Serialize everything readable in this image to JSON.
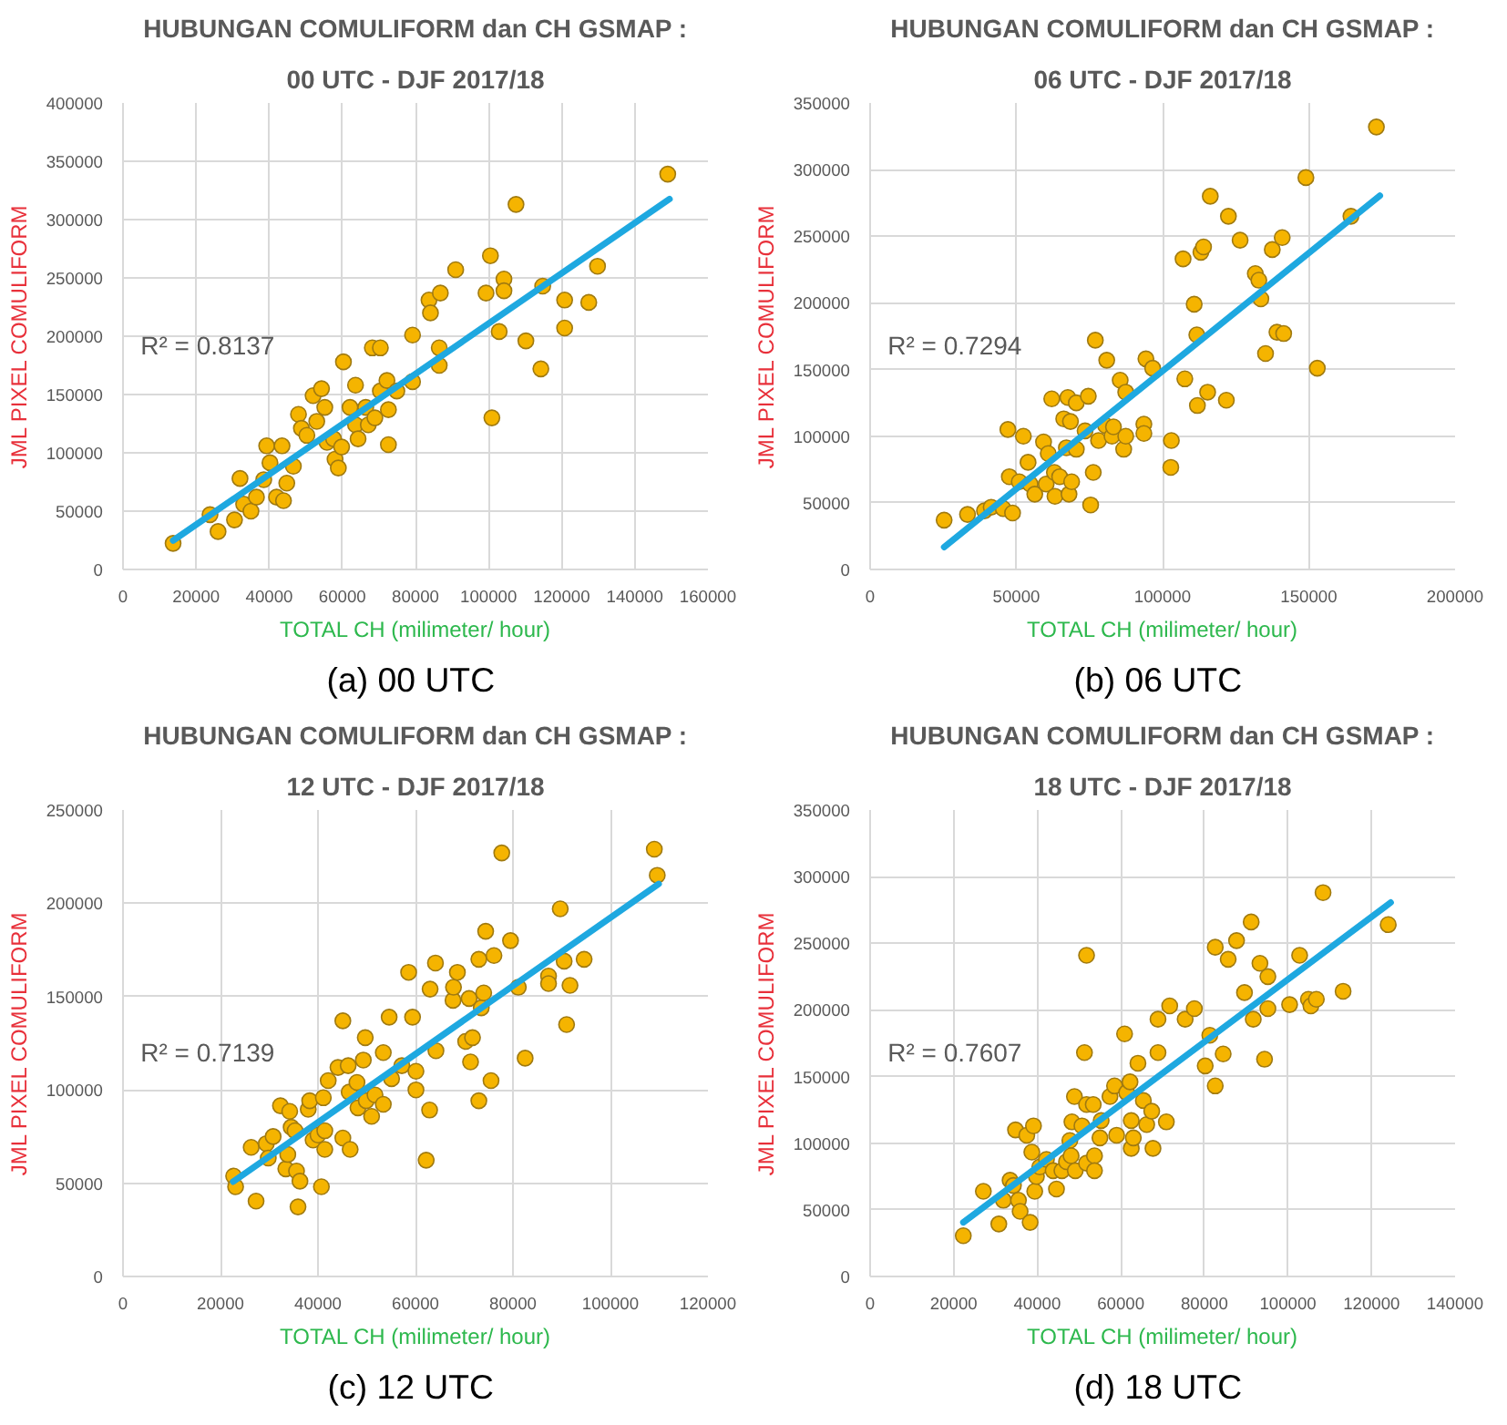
{
  "chart_data": [
    {
      "type": "scatter",
      "title": "HUBUNGAN COMULIFORM dan CH GSMAP :",
      "subtitle": "00 UTC - DJF 2017/18",
      "xlabel": "TOTAL CH (milimeter/ hour)",
      "ylabel": "JML PIXEL COMULIFORM",
      "annotations": [
        "R² = 0.8137",
        "(a)  00 UTC"
      ],
      "xlim": [
        0,
        160000
      ],
      "xticks": [
        0,
        20000,
        40000,
        60000,
        80000,
        100000,
        120000,
        140000,
        160000
      ],
      "ylim": [
        0,
        400000
      ],
      "yticks": [
        0,
        50000,
        100000,
        150000,
        200000,
        250000,
        300000,
        350000,
        400000
      ],
      "grid": true,
      "series": [
        {
          "type": "scatter",
          "marker": "circle",
          "color": "#f5b400",
          "x": [
            13700,
            23800,
            26000,
            30500,
            32000,
            33000,
            35000,
            36500,
            38500,
            39300,
            40200,
            42000,
            43500,
            43900,
            44800,
            46600,
            48000,
            48800,
            50300,
            52000,
            53000,
            54300,
            55200,
            55800,
            57600,
            58000,
            58900,
            59800,
            60300,
            62100,
            63600,
            63600,
            64300,
            66400,
            67100,
            68200,
            68900,
            70400,
            70400,
            72200,
            72600,
            72600,
            74900,
            79200,
            79200,
            83700,
            84100,
            86500,
            86500,
            86800,
            91000,
            99300,
            100500,
            100900,
            102900,
            104200,
            104200,
            107500,
            110200,
            114300,
            114800,
            120800,
            120800,
            127400,
            129800,
            149000
          ],
          "values": [
            22400,
            47000,
            32500,
            42500,
            78000,
            56000,
            50000,
            62000,
            77000,
            106000,
            91500,
            62000,
            106000,
            59000,
            74000,
            88500,
            133000,
            121000,
            115000,
            149000,
            127000,
            155000,
            139000,
            109000,
            112000,
            94500,
            87000,
            105000,
            178000,
            139000,
            158000,
            124000,
            112000,
            139000,
            124000,
            190000,
            130000,
            190000,
            153000,
            162000,
            137000,
            107000,
            153000,
            161000,
            201000,
            231000,
            220000,
            190000,
            175000,
            237000,
            257000,
            237000,
            269000,
            130000,
            204000,
            249000,
            239000,
            313000,
            196000,
            172000,
            243000,
            231000,
            207000,
            229000,
            260000,
            339000
          ]
        },
        {
          "type": "line",
          "line_style": "solid",
          "color": "#1ea8e0",
          "x": [
            13700,
            149500
          ],
          "values": [
            24800,
            317600
          ]
        }
      ]
    },
    {
      "type": "scatter",
      "title": "HUBUNGAN COMULIFORM dan CH GSMAP :",
      "subtitle": "06 UTC - DJF 2017/18",
      "xlabel": "TOTAL CH (milimeter/ hour)",
      "ylabel": "JML PIXEL COMULIFORM",
      "annotations": [
        "R² = 0.7294",
        "(b)  06 UTC"
      ],
      "xlim": [
        0,
        200000
      ],
      "xticks": [
        0,
        50000,
        100000,
        150000,
        200000
      ],
      "ylim": [
        0,
        350000
      ],
      "yticks": [
        0,
        50000,
        100000,
        150000,
        200000,
        250000,
        300000,
        350000
      ],
      "grid": true,
      "series": [
        {
          "type": "scatter",
          "marker": "circle",
          "color": "#f5b400",
          "x": [
            25300,
            33300,
            39100,
            41400,
            45500,
            47100,
            47600,
            48700,
            51000,
            52400,
            54000,
            54700,
            56300,
            59300,
            60200,
            60900,
            62100,
            63000,
            63200,
            64800,
            66200,
            67100,
            67600,
            68000,
            68500,
            68900,
            70500,
            70500,
            73500,
            74600,
            75400,
            76300,
            77000,
            78100,
            80500,
            80900,
            82700,
            83200,
            85500,
            86700,
            87400,
            87400,
            93600,
            93600,
            94300,
            96600,
            103000,
            102800,
            107000,
            107600,
            110800,
            111700,
            111900,
            113100,
            114000,
            115400,
            116300,
            121800,
            122500,
            126500,
            131700,
            132900,
            133600,
            135200,
            137500,
            139100,
            140900,
            141400,
            149000,
            152900,
            164400,
            173100
          ],
          "values": [
            37000,
            41300,
            44000,
            46700,
            45600,
            105000,
            69600,
            42400,
            65800,
            100000,
            80400,
            64100,
            56500,
            95700,
            64100,
            87000,
            128000,
            72800,
            54900,
            69600,
            113000,
            91300,
            129000,
            56500,
            111000,
            65800,
            90200,
            125000,
            104000,
            130000,
            48400,
            72800,
            172000,
            96700,
            108000,
            157000,
            100000,
            107000,
            142000,
            90200,
            100000,
            133000,
            109000,
            102000,
            158000,
            151000,
            96700,
            76600,
            233000,
            143000,
            199000,
            176000,
            123000,
            238000,
            242000,
            133000,
            280000,
            127000,
            265000,
            247000,
            222000,
            217000,
            203000,
            162000,
            240000,
            178000,
            249000,
            177000,
            294000,
            151000,
            265000,
            332000
          ]
        },
        {
          "type": "line",
          "line_style": "solid",
          "color": "#1ea8e0",
          "x": [
            25300,
            174300
          ],
          "values": [
            16800,
            280400
          ]
        }
      ]
    },
    {
      "type": "scatter",
      "title": "HUBUNGAN COMULIFORM dan CH GSMAP :",
      "subtitle": "12 UTC - DJF 2017/18",
      "xlabel": "TOTAL CH (milimeter/ hour)",
      "ylabel": "JML PIXEL COMULIFORM",
      "annotations": [
        "R² = 0.7139",
        "(c)  12 UTC"
      ],
      "xlim": [
        0,
        120000
      ],
      "xticks": [
        0,
        20000,
        40000,
        60000,
        80000,
        100000,
        120000
      ],
      "ylim": [
        0,
        250000
      ],
      "yticks": [
        0,
        50000,
        100000,
        150000,
        200000,
        250000
      ],
      "grid": true,
      "series": [
        {
          "type": "scatter",
          "marker": "circle",
          "color": "#f5b400",
          "x": [
            22700,
            23100,
            26300,
            27300,
            29400,
            29800,
            30800,
            32300,
            33400,
            33800,
            34200,
            34500,
            35300,
            35600,
            35900,
            36300,
            38000,
            38300,
            39000,
            40000,
            40700,
            41100,
            41400,
            41400,
            42100,
            44100,
            45100,
            45100,
            46200,
            46400,
            46600,
            48000,
            48200,
            49300,
            49700,
            49900,
            51000,
            51700,
            53400,
            53400,
            54600,
            55100,
            57200,
            58600,
            59400,
            60100,
            60100,
            62200,
            62900,
            63000,
            64100,
            64200,
            67700,
            67800,
            68600,
            70300,
            71000,
            71300,
            71700,
            73000,
            73000,
            73500,
            74000,
            74400,
            75500,
            76100,
            77700,
            79500,
            81100,
            82500,
            87300,
            87300,
            89700,
            90500,
            91000,
            91700,
            94600,
            109000,
            109600
          ],
          "values": [
            53800,
            48100,
            69200,
            40400,
            71200,
            63500,
            75000,
            91500,
            57700,
            65400,
            88500,
            80000,
            78100,
            56500,
            37300,
            51100,
            89600,
            94200,
            73100,
            75800,
            48100,
            95800,
            78100,
            68100,
            105000,
            112000,
            137000,
            74200,
            113000,
            98800,
            68100,
            104000,
            90400,
            116000,
            128000,
            94200,
            85800,
            97300,
            92300,
            120000,
            139000,
            106000,
            113000,
            163000,
            139000,
            110000,
            100000,
            62300,
            89200,
            154000,
            168000,
            121000,
            148000,
            155000,
            163000,
            126000,
            149000,
            115000,
            128000,
            94200,
            170000,
            144000,
            152000,
            185000,
            105000,
            172000,
            227000,
            180000,
            155000,
            117000,
            161000,
            157000,
            197000,
            169000,
            135000,
            156000,
            170000,
            229000,
            215000
          ]
        },
        {
          "type": "line",
          "line_style": "solid",
          "color": "#1ea8e0",
          "x": [
            22600,
            109900
          ],
          "values": [
            50800,
            210400
          ]
        }
      ]
    },
    {
      "type": "scatter",
      "title": "HUBUNGAN COMULIFORM dan CH GSMAP :",
      "subtitle": "18 UTC - DJF 2017/18",
      "xlabel": "TOTAL CH (milimeter/ hour)",
      "ylabel": "JML PIXEL COMULIFORM",
      "annotations": [
        "R² = 0.7607",
        "(d)  18 UTC"
      ],
      "xlim": [
        0,
        140000
      ],
      "xticks": [
        0,
        20000,
        40000,
        60000,
        80000,
        100000,
        120000,
        140000
      ],
      "ylim": [
        0,
        350000
      ],
      "yticks": [
        0,
        50000,
        100000,
        150000,
        200000,
        250000,
        300000,
        350000
      ],
      "grid": true,
      "series": [
        {
          "type": "scatter",
          "marker": "circle",
          "color": "#f5b400",
          "x": [
            22300,
            27100,
            30800,
            31900,
            33500,
            34300,
            34800,
            35500,
            35900,
            37500,
            38300,
            38700,
            39100,
            39400,
            39800,
            40600,
            42200,
            43800,
            44600,
            45900,
            47000,
            47800,
            48100,
            48300,
            48900,
            49100,
            50700,
            51300,
            51800,
            51800,
            51800,
            53400,
            53700,
            53700,
            55000,
            55300,
            57400,
            58500,
            59000,
            60900,
            61400,
            62200,
            62500,
            62500,
            63000,
            64100,
            65400,
            66200,
            67400,
            67700,
            68900,
            68900,
            70900,
            71700,
            75400,
            77600,
            80200,
            81300,
            82600,
            82600,
            84500,
            85700,
            87700,
            89600,
            91200,
            91700,
            93300,
            94400,
            95200,
            95200,
            100400,
            102800,
            104900,
            105500,
            106800,
            108400,
            113200,
            124000
          ],
          "values": [
            30600,
            63900,
            39400,
            57200,
            72200,
            68300,
            110000,
            57200,
            48900,
            106000,
            40600,
            93300,
            113000,
            63900,
            75000,
            82200,
            87800,
            79400,
            65600,
            79400,
            86100,
            102000,
            90600,
            116000,
            135000,
            79400,
            113000,
            168000,
            129000,
            85000,
            241000,
            129000,
            90600,
            79400,
            104000,
            117000,
            135000,
            143000,
            106000,
            182000,
            138000,
            146000,
            117000,
            96100,
            104000,
            160000,
            132000,
            114000,
            124000,
            96100,
            168000,
            193000,
            116000,
            203000,
            193000,
            201000,
            158000,
            181000,
            247000,
            143000,
            167000,
            238000,
            252000,
            213000,
            266000,
            193000,
            235000,
            163000,
            225000,
            201000,
            204000,
            241000,
            208000,
            203000,
            208000,
            288000,
            214000,
            264000
          ]
        },
        {
          "type": "line",
          "line_style": "solid",
          "color": "#1ea8e0",
          "x": [
            22300,
            124600
          ],
          "values": [
            40600,
            280600
          ]
        }
      ]
    }
  ]
}
